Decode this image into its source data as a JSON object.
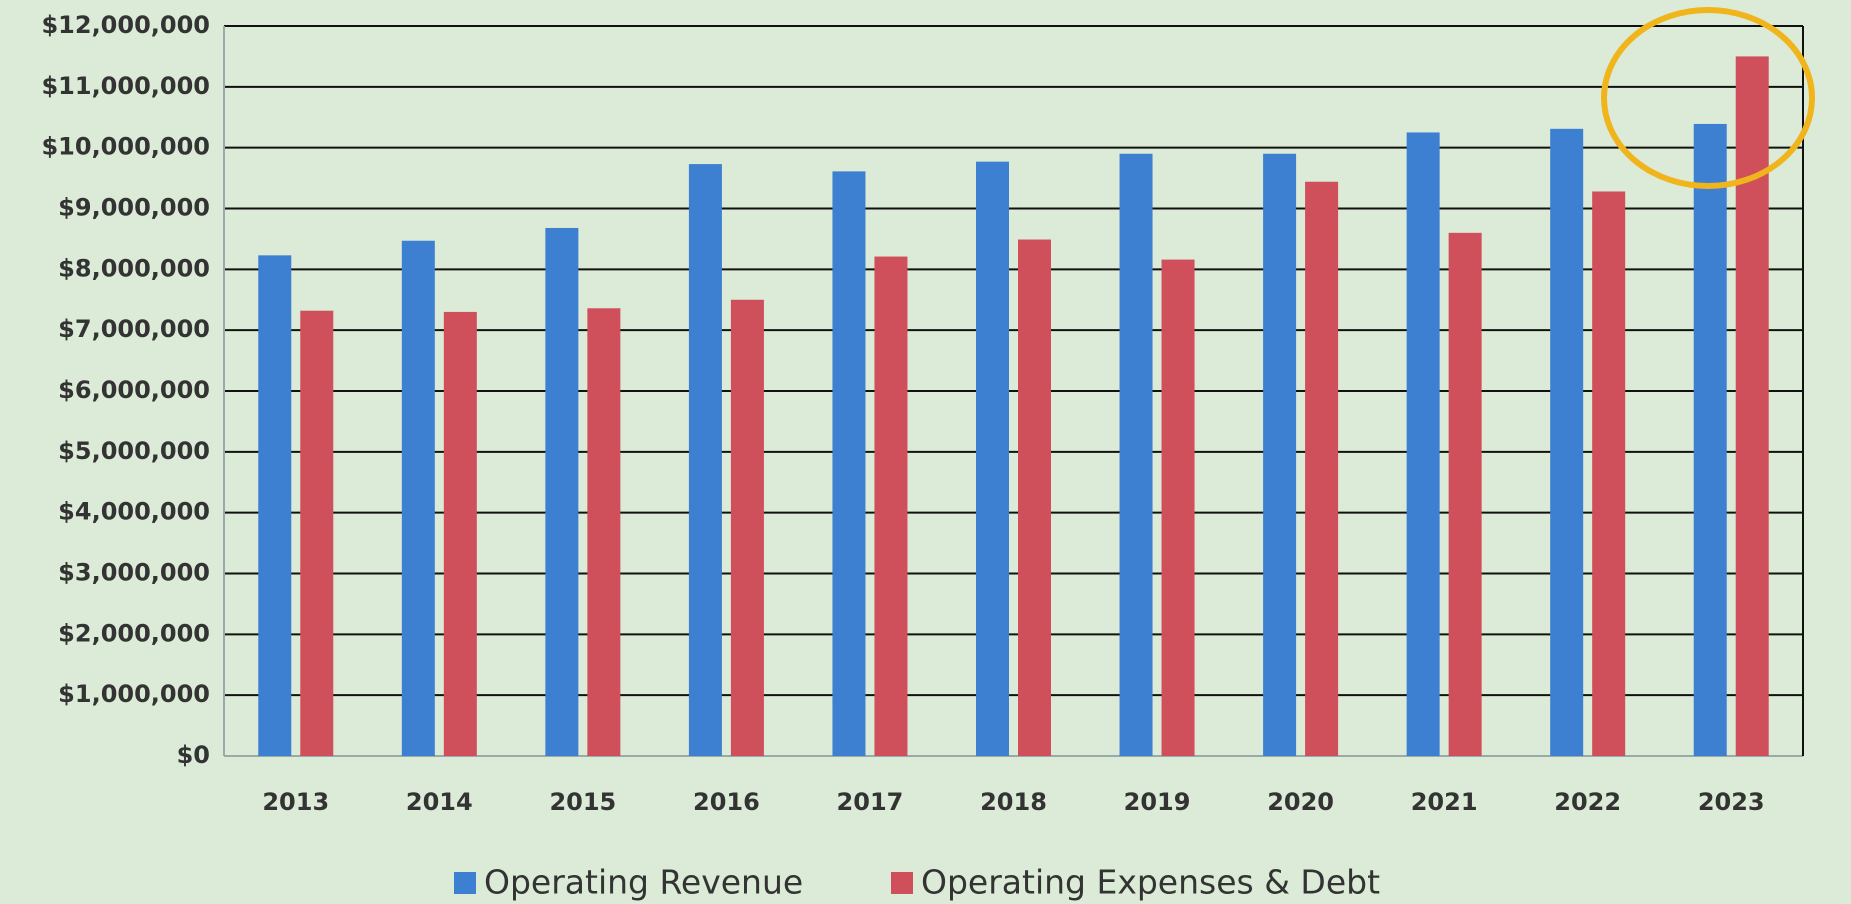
{
  "chart_data": {
    "type": "bar",
    "categories": [
      "2013",
      "2014",
      "2015",
      "2016",
      "2017",
      "2018",
      "2019",
      "2020",
      "2021",
      "2022",
      "2023"
    ],
    "series": [
      {
        "name": "Operating Revenue",
        "color": "#3d7fd0",
        "values": [
          8230000,
          8470000,
          8680000,
          9730000,
          9610000,
          9770000,
          9900000,
          9900000,
          10250000,
          10310000,
          10390000
        ]
      },
      {
        "name": "Operating Expenses & Debt",
        "color": "#cf4f5a",
        "values": [
          7320000,
          7300000,
          7360000,
          7500000,
          8210000,
          8490000,
          8160000,
          9440000,
          8600000,
          9280000,
          11500000
        ]
      }
    ],
    "ylim": [
      0,
      12000000
    ],
    "yticks": [
      {
        "value": 0,
        "label": "$0"
      },
      {
        "value": 1000000,
        "label": "$1,000,000"
      },
      {
        "value": 2000000,
        "label": "$2,000,000"
      },
      {
        "value": 3000000,
        "label": "$3,000,000"
      },
      {
        "value": 4000000,
        "label": "$4,000,000"
      },
      {
        "value": 5000000,
        "label": "$5,000,000"
      },
      {
        "value": 6000000,
        "label": "$6,000,000"
      },
      {
        "value": 7000000,
        "label": "$7,000,000"
      },
      {
        "value": 8000000,
        "label": "$8,000,000"
      },
      {
        "value": 9000000,
        "label": "$9,000,000"
      },
      {
        "value": 10000000,
        "label": "$10,000,000"
      },
      {
        "value": 11000000,
        "label": "$11,000,000"
      },
      {
        "value": 12000000,
        "label": "$12,000,000"
      }
    ],
    "grid": true
  }
}
